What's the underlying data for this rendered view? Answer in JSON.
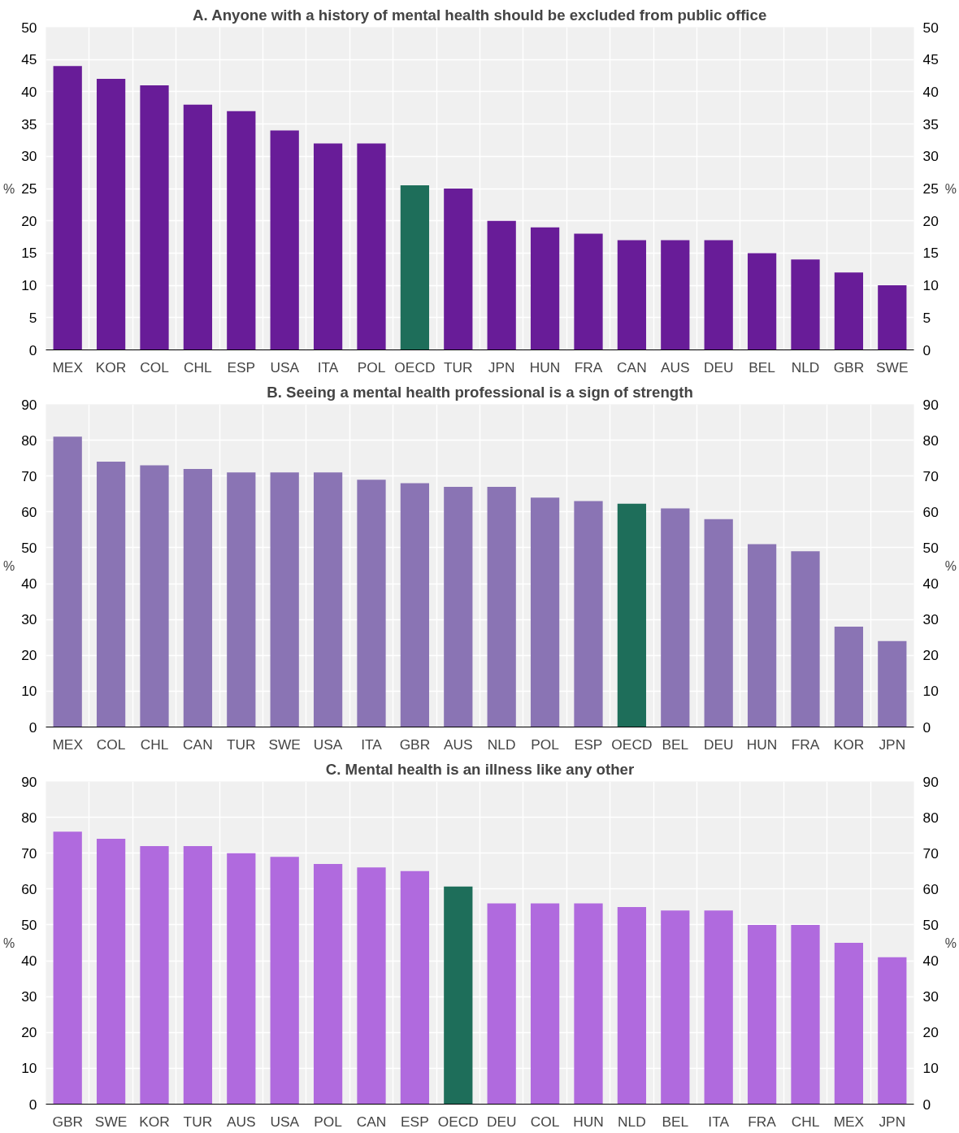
{
  "chart_data": [
    {
      "type": "bar",
      "title": "A. Anyone with a history of mental health should be excluded from public office",
      "ylabel": "%",
      "y2label": "%",
      "categories": [
        "MEX",
        "KOR",
        "COL",
        "CHL",
        "ESP",
        "USA",
        "ITA",
        "POL",
        "OECD",
        "TUR",
        "JPN",
        "HUN",
        "FRA",
        "CAN",
        "AUS",
        "DEU",
        "BEL",
        "NLD",
        "GBR",
        "SWE"
      ],
      "values": [
        44,
        42,
        41,
        38,
        37,
        34,
        32,
        32,
        25.5,
        25,
        20,
        19,
        18,
        17,
        17,
        17,
        15,
        14,
        12,
        10
      ],
      "colors": [
        "#681c98",
        "#681c98",
        "#681c98",
        "#681c98",
        "#681c98",
        "#681c98",
        "#681c98",
        "#681c98",
        "#1e6e5a",
        "#681c98",
        "#681c98",
        "#681c98",
        "#681c98",
        "#681c98",
        "#681c98",
        "#681c98",
        "#681c98",
        "#681c98",
        "#681c98",
        "#681c98"
      ],
      "ylim": [
        0,
        50
      ],
      "yticks": [
        0,
        5,
        10,
        15,
        20,
        25,
        30,
        35,
        40,
        45,
        50
      ],
      "y2lim": [
        0,
        50
      ],
      "y2ticks": [
        0,
        5,
        10,
        15,
        20,
        25,
        30,
        35,
        40,
        45,
        50
      ],
      "grid": true
    },
    {
      "type": "bar",
      "title": "B. Seeing a mental health professional is a sign of strength",
      "ylabel": "%",
      "y2label": "%",
      "grid": true,
      "categories": [
        "MEX",
        "COL",
        "CHL",
        "CAN",
        "TUR",
        "SWE",
        "USA",
        "ITA",
        "GBR",
        "AUS",
        "NLD",
        "POL",
        "ESP",
        "OECD",
        "BEL",
        "DEU",
        "HUN",
        "FRA",
        "KOR",
        "JPN"
      ],
      "values": [
        81,
        74,
        73,
        72,
        71,
        71,
        71,
        69,
        68,
        67,
        67,
        64,
        63,
        62.3,
        61,
        58,
        51,
        49,
        28,
        24
      ],
      "colors": [
        "#8a74b4",
        "#8a74b4",
        "#8a74b4",
        "#8a74b4",
        "#8a74b4",
        "#8a74b4",
        "#8a74b4",
        "#8a74b4",
        "#8a74b4",
        "#8a74b4",
        "#8a74b4",
        "#8a74b4",
        "#8a74b4",
        "#1e6e5a",
        "#8a74b4",
        "#8a74b4",
        "#8a74b4",
        "#8a74b4",
        "#8a74b4",
        "#8a74b4"
      ],
      "ylim": [
        0,
        90
      ],
      "yticks": [
        0,
        10,
        20,
        30,
        40,
        50,
        60,
        70,
        80,
        90
      ],
      "y2lim": [
        0,
        90
      ],
      "y2ticks": [
        0,
        10,
        20,
        30,
        40,
        50,
        60,
        70,
        80,
        90
      ]
    },
    {
      "type": "bar",
      "title": "C. Mental health is an illness like any other",
      "ylabel": "%",
      "y2label": "%",
      "categories": [
        "GBR",
        "SWE",
        "KOR",
        "TUR",
        "AUS",
        "USA",
        "POL",
        "CAN",
        "ESP",
        "OECD",
        "DEU",
        "COL",
        "HUN",
        "NLD",
        "BEL",
        "ITA",
        "FRA",
        "CHL",
        "MEX",
        "JPN"
      ],
      "values": [
        76,
        74,
        72,
        72,
        70,
        69,
        67,
        66,
        65,
        60.7,
        56,
        56,
        56,
        55,
        54,
        54,
        50,
        50,
        45,
        41
      ],
      "colors": [
        "#b06ade",
        "#b06ade",
        "#b06ade",
        "#b06ade",
        "#b06ade",
        "#b06ade",
        "#b06ade",
        "#b06ade",
        "#b06ade",
        "#1e6e5a",
        "#b06ade",
        "#b06ade",
        "#b06ade",
        "#b06ade",
        "#b06ade",
        "#b06ade",
        "#b06ade",
        "#b06ade",
        "#b06ade",
        "#b06ade"
      ],
      "ylim": [
        0,
        90
      ],
      "yticks": [
        0,
        10,
        20,
        30,
        40,
        50,
        60,
        70,
        80,
        90
      ],
      "y2lim": [
        0,
        90
      ],
      "y2ticks": [
        0,
        10,
        20,
        30,
        40,
        50,
        60,
        70,
        80,
        90
      ],
      "grid": true
    }
  ]
}
